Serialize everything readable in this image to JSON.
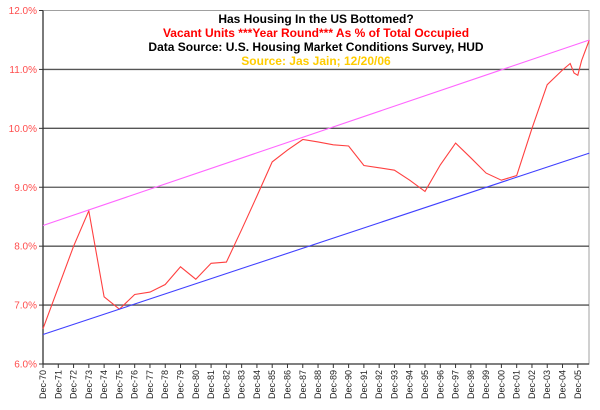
{
  "chart_data": {
    "type": "line",
    "title_lines": [
      {
        "text": "Has Housing In the US Bottomed?",
        "color": "#000000"
      },
      {
        "text": "Vacant Units ***Year Round*** As % of Total Occupied",
        "color": "#ff0000"
      },
      {
        "text": "Data Source: U.S. Housing Market Conditions Survey, HUD",
        "color": "#000000"
      },
      {
        "text": "Source: Jas Jain; 12/20/06",
        "color": "#ffcc00"
      }
    ],
    "ylim": [
      6.0,
      12.0
    ],
    "y_ticks": [
      "6.0%",
      "7.0%",
      "8.0%",
      "9.0%",
      "10.0%",
      "11.0%",
      "12.0%"
    ],
    "y_tick_color": "#ff4d4d",
    "grid": "horizontal",
    "x_ticks": [
      "Dec-70",
      "Dec-71",
      "Dec-72",
      "Dec-73",
      "Dec-74",
      "Dec-75",
      "Dec-76",
      "Dec-77",
      "Dec-78",
      "Dec-79",
      "Dec-80",
      "Dec-81",
      "Dec-82",
      "Dec-83",
      "Dec-84",
      "Dec-85",
      "Dec-86",
      "Dec-87",
      "Dec-88",
      "Dec-89",
      "Dec-90",
      "Dec-91",
      "Dec-92",
      "Dec-93",
      "Dec-94",
      "Dec-95",
      "Dec-96",
      "Dec-97",
      "Dec-98",
      "Dec-99",
      "Dec-00",
      "Dec-01",
      "Dec-02",
      "Dec-03",
      "Dec-04",
      "Dec-05"
    ],
    "series": [
      {
        "color": "#ff4040",
        "points": [
          [
            "Dec-70",
            6.6
          ],
          [
            "Dec-71",
            7.3
          ],
          [
            "Dec-72",
            8.0
          ],
          [
            "Dec-73",
            8.6
          ],
          [
            "Dec-74",
            7.14
          ],
          [
            "Dec-75",
            6.93
          ],
          [
            "Dec-76",
            7.18
          ],
          [
            "Dec-77",
            7.22
          ],
          [
            "Dec-78",
            7.35
          ],
          [
            "Dec-79",
            7.65
          ],
          [
            "Dec-80",
            7.44
          ],
          [
            "Dec-81",
            7.71
          ],
          [
            "Dec-82",
            7.73
          ],
          [
            "Dec-83",
            8.28
          ],
          [
            "Dec-84",
            8.85
          ],
          [
            "Dec-85",
            9.43
          ],
          [
            "Dec-86",
            9.63
          ],
          [
            "Dec-87",
            9.81
          ],
          [
            "Dec-88",
            9.77
          ],
          [
            "Dec-89",
            9.72
          ],
          [
            "Dec-90",
            9.7
          ],
          [
            "Dec-91",
            9.37
          ],
          [
            "Dec-92",
            9.33
          ],
          [
            "Dec-93",
            9.29
          ],
          [
            "Dec-94",
            9.12
          ],
          [
            "Dec-95",
            8.93
          ],
          [
            "Dec-96",
            9.38
          ],
          [
            "Dec-97",
            9.75
          ],
          [
            "Dec-98",
            9.5
          ],
          [
            "Dec-99",
            9.24
          ],
          [
            "Dec-00",
            9.12
          ],
          [
            "Dec-01",
            9.2
          ],
          [
            "Dec-02",
            10.0
          ],
          [
            "Dec-03",
            10.74
          ],
          [
            "Dec-04",
            10.99
          ],
          [
            "Jun-05",
            11.1
          ],
          [
            "Sep-05",
            10.94
          ],
          [
            "Dec-05",
            10.9
          ],
          [
            "Mar-06",
            11.15
          ],
          [
            "Sep-06",
            11.5
          ]
        ]
      },
      {
        "color": "#ff66ff",
        "points": [
          [
            "Dec-70",
            8.35
          ],
          [
            "Sep-06",
            11.5
          ]
        ]
      },
      {
        "color": "#4040ff",
        "points": [
          [
            "Dec-70",
            6.5
          ],
          [
            "Sep-06",
            9.58
          ]
        ]
      }
    ]
  }
}
